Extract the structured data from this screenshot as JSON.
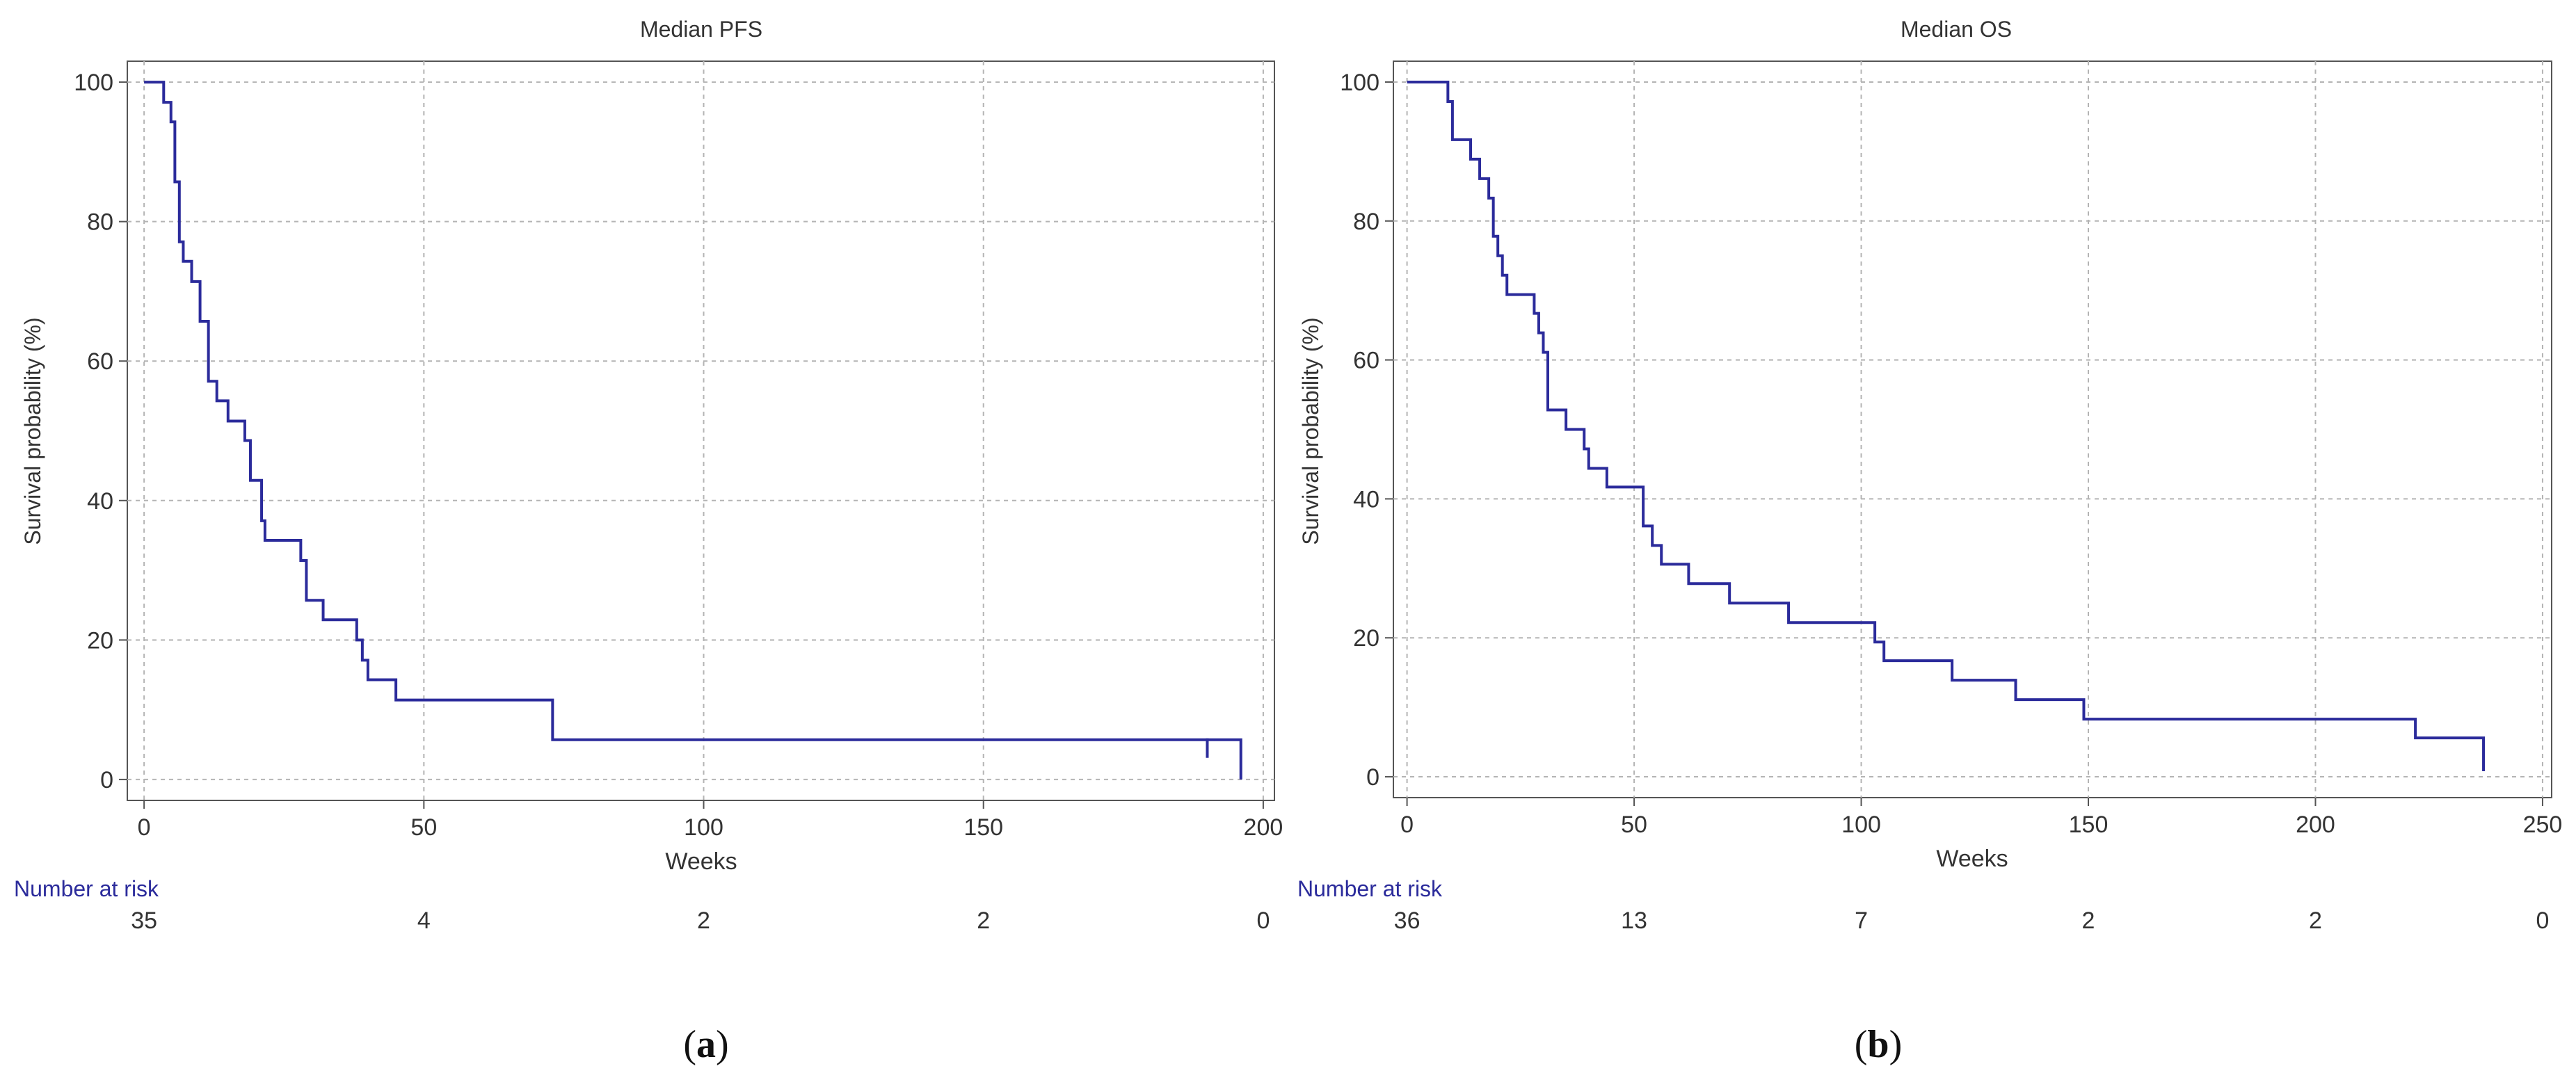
{
  "chart_data": [
    {
      "type": "line",
      "step": true,
      "title": "Median PFS",
      "xlabel": "Weeks",
      "ylabel": "Survival probability (%)",
      "xlim": [
        -3,
        202
      ],
      "ylim": [
        -3,
        103
      ],
      "xticks": [
        0,
        50,
        100,
        150,
        200
      ],
      "yticks": [
        0,
        20,
        40,
        60,
        80,
        100
      ],
      "grid": true,
      "color": "#2b2b9b",
      "series": [
        {
          "x": [
            0,
            3.5,
            4.8,
            5.5,
            6.3,
            7.0,
            8.5,
            10.0,
            11.5,
            12.2,
            13.0,
            15.0,
            18.0,
            19.0,
            21.0,
            21.6,
            22.3,
            28.0,
            29.0,
            32.0,
            38.0,
            39.0,
            40.0,
            45.0,
            73.0,
            196.0
          ],
          "y": [
            100,
            97.1,
            94.3,
            85.7,
            77.1,
            74.3,
            71.4,
            65.7,
            57.1,
            57.1,
            54.3,
            51.4,
            48.6,
            42.9,
            37.1,
            34.3,
            34.3,
            31.4,
            25.7,
            22.9,
            20.0,
            17.1,
            14.3,
            11.4,
            5.7,
            0
          ],
          "censored": [
            {
              "x": 190,
              "y": 5.7
            }
          ]
        }
      ],
      "risk_label": "Number at risk",
      "risk_table": {
        "times": [
          0,
          50,
          100,
          150,
          200
        ],
        "counts": [
          "35",
          "4",
          "2",
          "2",
          "0"
        ]
      },
      "panel_label": {
        "open": "(",
        "letter": "a",
        "close": ")"
      }
    },
    {
      "type": "line",
      "step": true,
      "title": "Median OS",
      "xlabel": "Weeks",
      "ylabel": "Survival probability (%)",
      "xlim": [
        -3,
        252
      ],
      "ylim": [
        -3,
        103
      ],
      "xticks": [
        0,
        50,
        100,
        150,
        200,
        250
      ],
      "yticks": [
        0,
        20,
        40,
        60,
        80,
        100
      ],
      "grid": true,
      "color": "#2b2b9b",
      "series": [
        {
          "x": [
            0,
            9.0,
            10.0,
            14.0,
            16.0,
            18.0,
            19.0,
            20.0,
            21.0,
            22.0,
            28.0,
            29.0,
            30.0,
            31.0,
            35.0,
            39.0,
            40.0,
            44.0,
            52.0,
            54.0,
            56.0,
            62.0,
            71.0,
            84.0,
            103.0,
            105.0,
            120.0,
            134.0,
            149.0,
            222.0,
            237.0
          ],
          "y": [
            100,
            97.2,
            91.7,
            88.9,
            86.1,
            83.3,
            77.8,
            75.0,
            72.2,
            69.4,
            66.7,
            63.9,
            61.1,
            52.8,
            50.0,
            47.2,
            44.4,
            41.7,
            36.1,
            33.3,
            30.6,
            27.8,
            25.0,
            22.2,
            19.4,
            16.7,
            13.9,
            11.1,
            8.3,
            5.6,
            2.8
          ],
          "end": {
            "x": 237,
            "y": 0.8
          }
        }
      ],
      "risk_label": "Number at risk",
      "risk_table": {
        "times": [
          0,
          50,
          100,
          150,
          200,
          250
        ],
        "counts": [
          "36",
          "13",
          "7",
          "2",
          "2",
          "0"
        ]
      },
      "panel_label": {
        "open": "(",
        "letter": "b",
        "close": ")"
      }
    }
  ]
}
